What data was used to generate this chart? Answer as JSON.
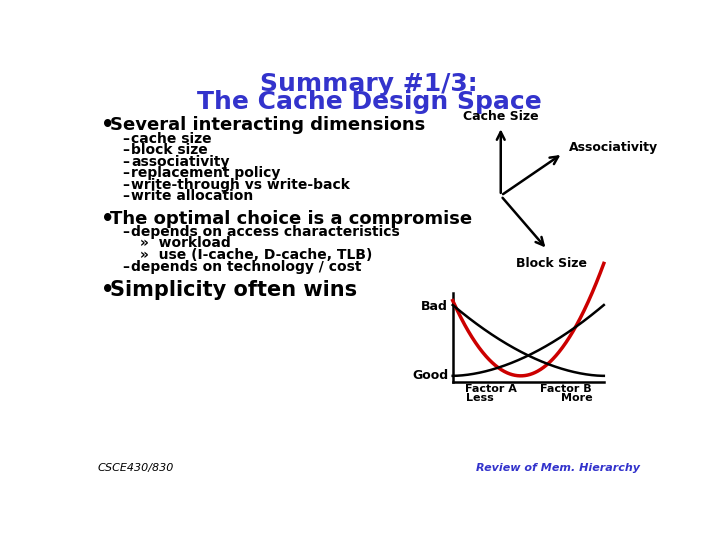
{
  "title_line1": "Summary #1/3:",
  "title_line2": "The Cache Design Space",
  "title_color": "#3333cc",
  "bg_color": "#ffffff",
  "bullet1": "Several interacting dimensions",
  "sub_items1": [
    "cache size",
    "block size",
    "associativity",
    "replacement policy",
    "write-through vs write-back",
    "write allocation"
  ],
  "bullet2": "The optimal choice is a compromise",
  "sub_items2_a": "depends on access characteristics",
  "sub_items2_b1": "»  workload",
  "sub_items2_b2": "»  use (I-cache, D-cache, TLB)",
  "sub_items2_c": "depends on technology / cost",
  "bullet3": "Simplicity often wins",
  "footer_left": "CSCE430/830",
  "footer_right": "Review of Mem. Hierarchy",
  "diag1_cache_size": "Cache Size",
  "diag1_associativity": "Associativity",
  "diag1_block_size": "Block Size",
  "diag2_bad": "Bad",
  "diag2_good": "Good",
  "diag2_factor_a": "Factor A",
  "diag2_factor_b": "Factor B",
  "diag2_less": "Less",
  "diag2_more": "More"
}
